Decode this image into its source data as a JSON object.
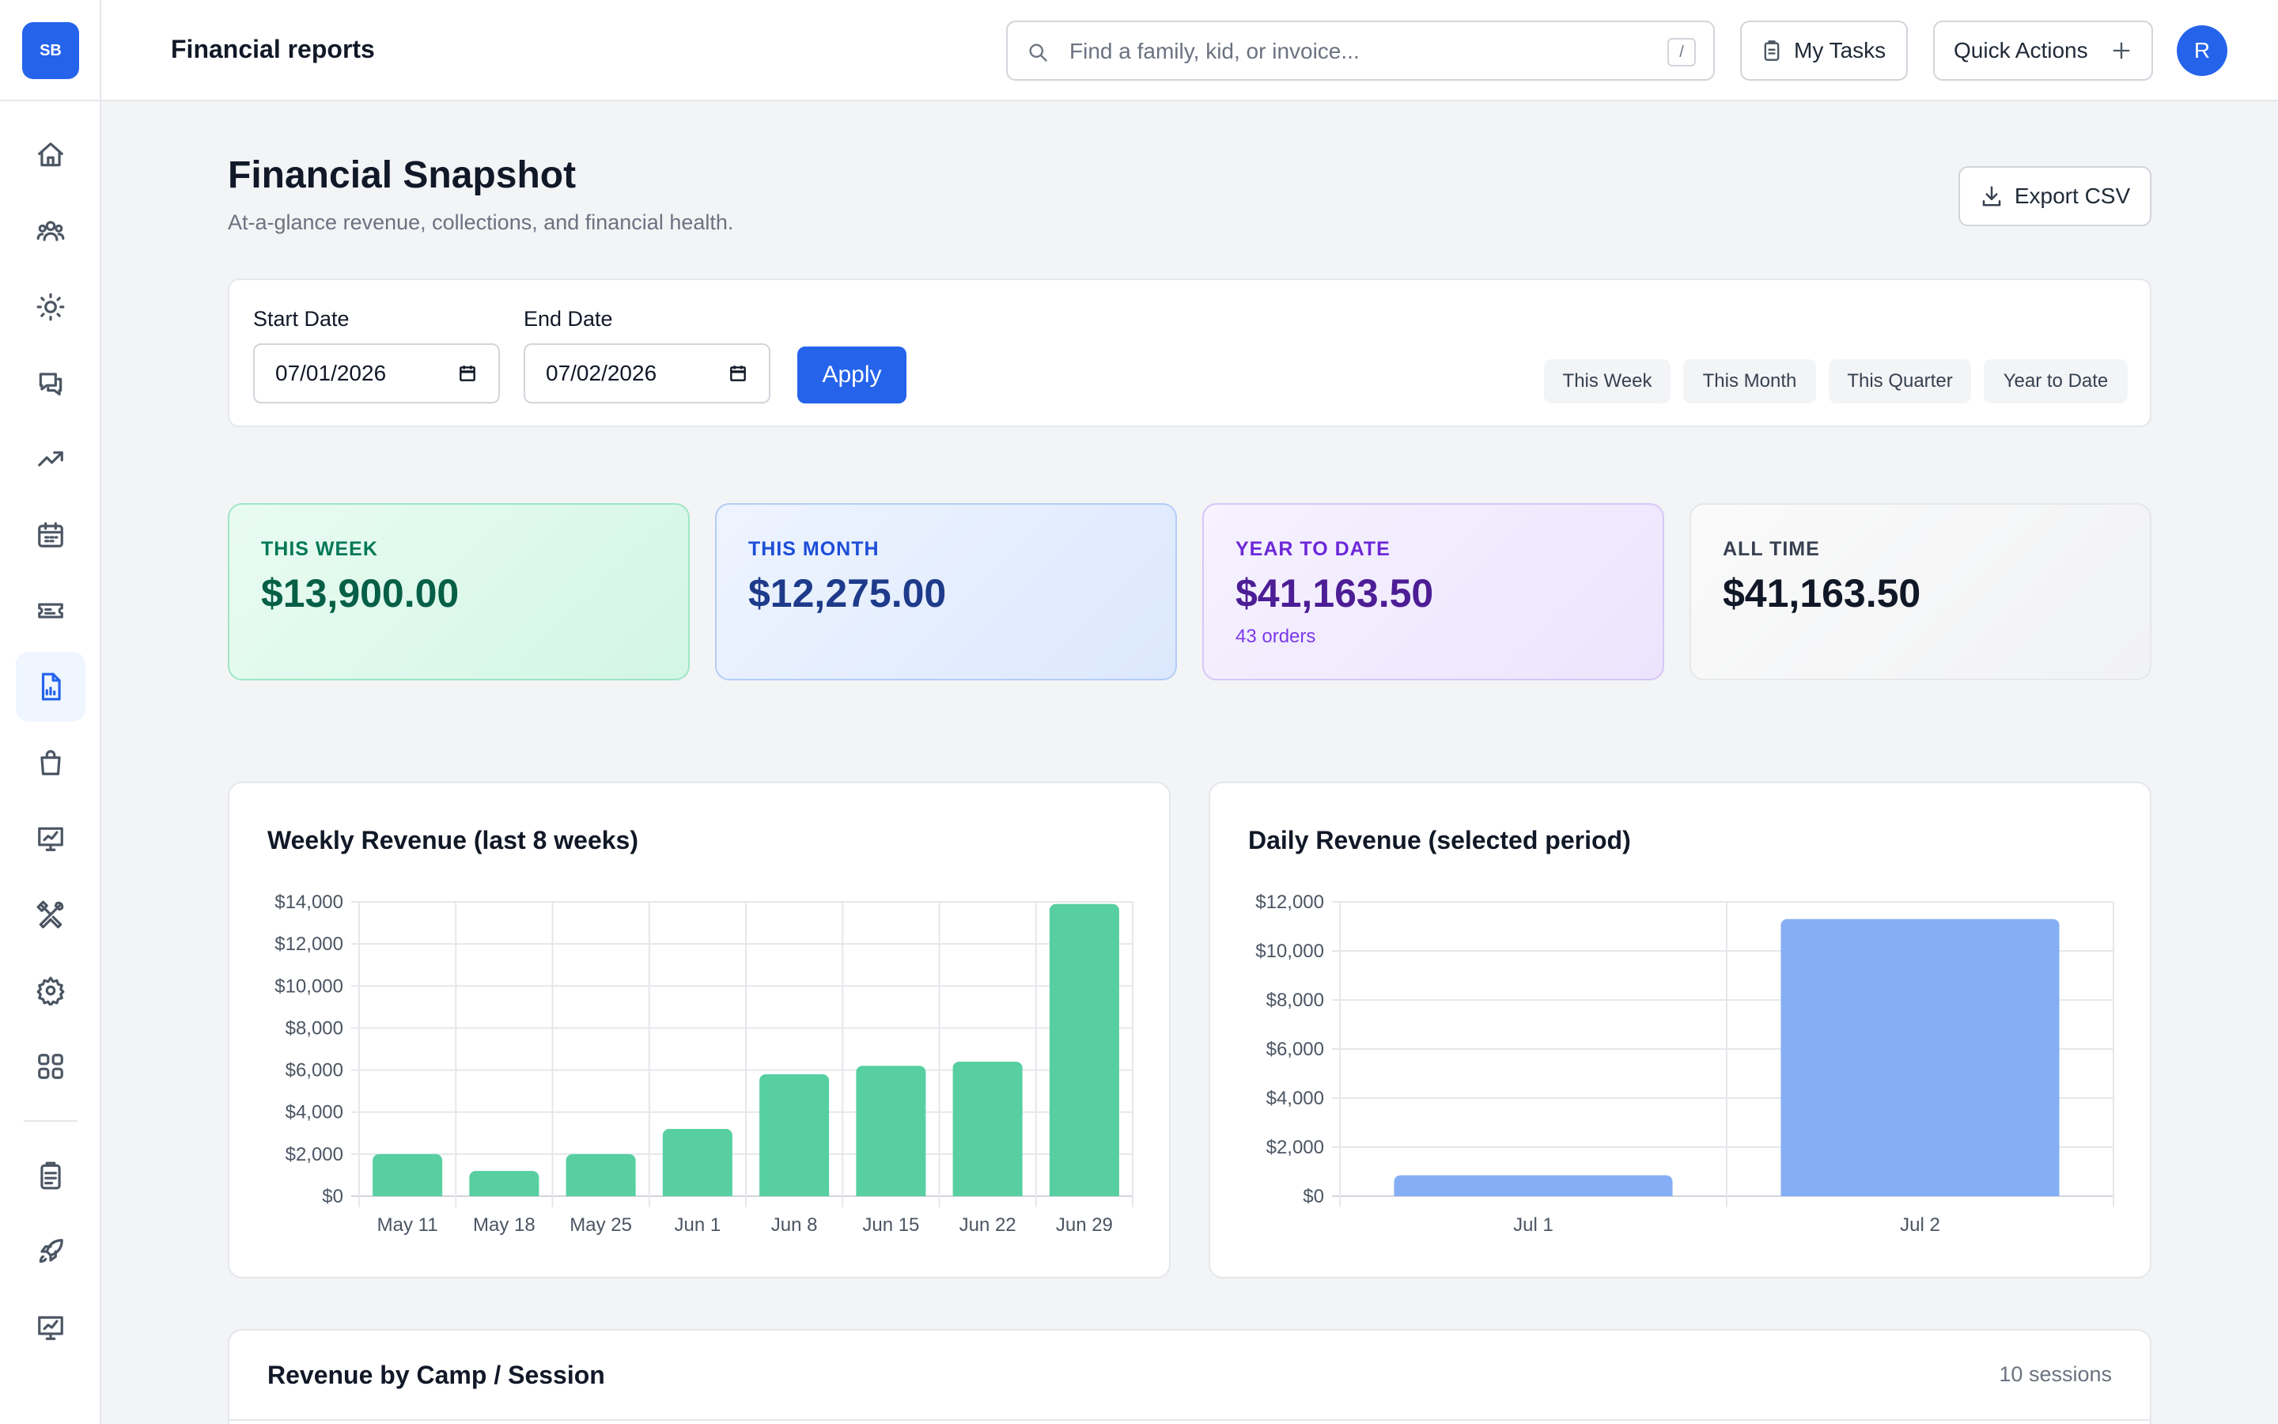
{
  "app": {
    "logo": "SB"
  },
  "header": {
    "title": "Financial reports",
    "search_placeholder": "Find a family, kid, or invoice...",
    "search_shortcut": "/",
    "my_tasks_label": "My Tasks",
    "quick_actions_label": "Quick Actions",
    "avatar_initial": "R"
  },
  "sidebar": {
    "items": [
      {
        "icon": "home-icon"
      },
      {
        "icon": "users-icon"
      },
      {
        "icon": "sun-icon"
      },
      {
        "icon": "messages-icon"
      },
      {
        "icon": "trending-up-icon"
      },
      {
        "icon": "calendar-icon"
      },
      {
        "icon": "ticket-icon"
      },
      {
        "icon": "file-chart-icon",
        "active": true
      },
      {
        "icon": "shopping-bag-icon"
      },
      {
        "icon": "presentation-chart-icon"
      },
      {
        "icon": "tools-icon"
      },
      {
        "icon": "gear-icon"
      },
      {
        "icon": "grid-icon"
      },
      {
        "icon": "clipboard-icon"
      },
      {
        "icon": "rocket-icon"
      },
      {
        "icon": "presentation-chart-icon"
      }
    ]
  },
  "page": {
    "title": "Financial Snapshot",
    "subtitle": "At-a-glance revenue, collections, and financial health.",
    "export_label": "Export CSV"
  },
  "filters": {
    "start_label": "Start Date",
    "start_value": "07/01/2026",
    "end_label": "End Date",
    "end_value": "07/02/2026",
    "apply_label": "Apply",
    "presets": [
      "This Week",
      "This Month",
      "This Quarter",
      "Year to Date"
    ]
  },
  "stats": [
    {
      "label": "THIS WEEK",
      "value": "$13,900.00",
      "sub": ""
    },
    {
      "label": "THIS MONTH",
      "value": "$12,275.00",
      "sub": ""
    },
    {
      "label": "YEAR TO DATE",
      "value": "$41,163.50",
      "sub": "43 orders"
    },
    {
      "label": "ALL TIME",
      "value": "$41,163.50",
      "sub": ""
    }
  ],
  "colors": {
    "accent": "#2563eb",
    "weekly_bar": "#57cfa1",
    "daily_bar": "#85aef5"
  },
  "chart_data": [
    {
      "type": "bar",
      "title": "Weekly Revenue (last 8 weeks)",
      "categories": [
        "May 11",
        "May 18",
        "May 25",
        "Jun 1",
        "Jun 8",
        "Jun 15",
        "Jun 22",
        "Jun 29"
      ],
      "values": [
        2000,
        1200,
        2000,
        3200,
        5800,
        6200,
        6400,
        13900
      ],
      "ylim": [
        0,
        14000
      ],
      "yticks": [
        "$0",
        "$2,000",
        "$4,000",
        "$6,000",
        "$8,000",
        "$10,000",
        "$12,000",
        "$14,000"
      ],
      "grid": true
    },
    {
      "type": "bar",
      "title": "Daily Revenue (selected period)",
      "categories": [
        "Jul 1",
        "Jul 2"
      ],
      "values": [
        850,
        11300
      ],
      "ylim": [
        0,
        12000
      ],
      "yticks": [
        "$0",
        "$2,000",
        "$4,000",
        "$6,000",
        "$8,000",
        "$10,000",
        "$12,000"
      ],
      "grid": true
    }
  ],
  "table": {
    "title": "Revenue by Camp / Session",
    "count": "10 sessions"
  }
}
